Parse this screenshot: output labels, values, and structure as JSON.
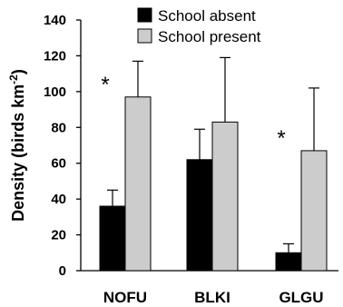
{
  "chart_data": {
    "type": "bar",
    "categories": [
      "NOFU",
      "BLKI",
      "GLGU"
    ],
    "series": [
      {
        "name": "School absent",
        "color": "#000000",
        "values": [
          36,
          62,
          10
        ],
        "error_upper": [
          45,
          79,
          15
        ]
      },
      {
        "name": "School present",
        "color": "#cccccc",
        "values": [
          97,
          83,
          67
        ],
        "error_upper": [
          117,
          119,
          102
        ]
      }
    ],
    "significance": [
      {
        "category": "NOFU",
        "label": "*"
      },
      {
        "category": "GLGU",
        "label": "*"
      }
    ],
    "ylabel": "Density (birds km",
    "ylabel_superscript": "-2",
    "ylabel_suffix": ")",
    "xlabel": "",
    "title": "",
    "ylim": [
      0,
      140
    ],
    "yticks": [
      0,
      20,
      40,
      60,
      80,
      100,
      120,
      140
    ],
    "legend_position": "top",
    "grid": false
  }
}
